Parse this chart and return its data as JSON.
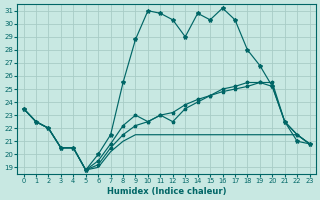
{
  "xlabel": "Humidex (Indice chaleur)",
  "bg_color": "#c8e8e2",
  "grid_color": "#a8ccc6",
  "line_color": "#006666",
  "xlim": [
    -0.5,
    23.5
  ],
  "ylim": [
    18.5,
    31.5
  ],
  "xticks": [
    0,
    1,
    2,
    3,
    4,
    5,
    6,
    7,
    8,
    9,
    10,
    11,
    12,
    13,
    14,
    15,
    16,
    17,
    18,
    19,
    20,
    21,
    22,
    23
  ],
  "yticks": [
    19,
    20,
    21,
    22,
    23,
    24,
    25,
    26,
    27,
    28,
    29,
    30,
    31
  ],
  "line1_y": [
    23.5,
    22.5,
    22.0,
    20.5,
    20.5,
    18.8,
    20.0,
    21.5,
    25.5,
    28.8,
    31.0,
    30.8,
    30.3,
    29.0,
    30.8,
    30.3,
    31.2,
    30.3,
    28.0,
    26.8,
    25.2,
    22.5,
    21.0,
    20.8
  ],
  "line2_y": [
    23.5,
    22.5,
    22.0,
    20.5,
    20.5,
    18.8,
    19.5,
    20.8,
    22.2,
    23.0,
    22.5,
    23.0,
    22.5,
    23.5,
    24.0,
    24.5,
    25.0,
    25.2,
    25.5,
    25.5,
    25.2,
    22.5,
    21.5,
    20.8
  ],
  "line3_y": [
    23.5,
    22.5,
    22.0,
    20.5,
    20.5,
    18.8,
    19.0,
    20.2,
    21.0,
    21.5,
    21.5,
    21.5,
    21.5,
    21.5,
    21.5,
    21.5,
    21.5,
    21.5,
    21.5,
    21.5,
    21.5,
    21.5,
    21.5,
    20.8
  ],
  "line4_y": [
    23.5,
    22.5,
    22.0,
    20.5,
    20.5,
    18.8,
    19.2,
    20.5,
    21.5,
    22.2,
    22.5,
    23.0,
    23.2,
    23.8,
    24.2,
    24.5,
    24.8,
    25.0,
    25.2,
    25.5,
    25.5,
    22.5,
    21.5,
    20.8
  ]
}
